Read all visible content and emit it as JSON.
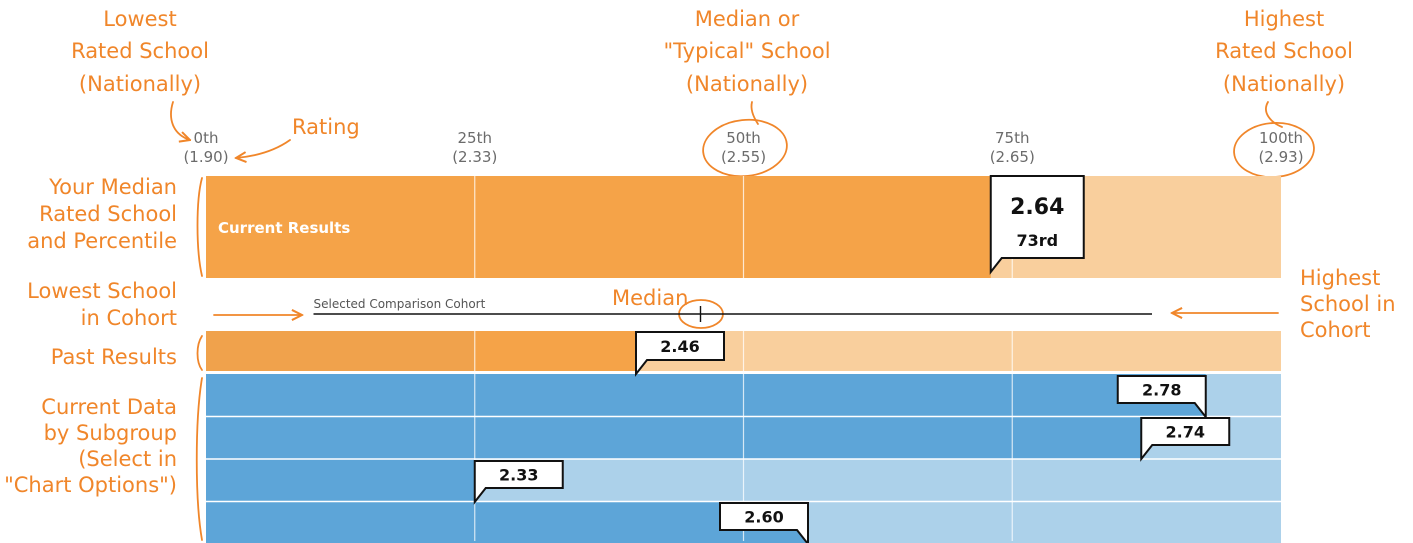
{
  "chart_data": {
    "type": "bar",
    "percentile_ticks": [
      {
        "pct": "0th",
        "rating": "(1.90)"
      },
      {
        "pct": "25th",
        "rating": "(2.33)"
      },
      {
        "pct": "50th",
        "rating": "(2.55)"
      },
      {
        "pct": "75th",
        "rating": "(2.65)"
      },
      {
        "pct": "100th",
        "rating": "(2.93)"
      }
    ],
    "xlim_percentile": [
      0,
      100
    ],
    "current_results": {
      "label": "Current Results",
      "rating": "2.64",
      "percentile_label": "73rd",
      "percentile": 73
    },
    "cohort": {
      "label": "Selected Comparison Cohort",
      "low_percentile": 10,
      "median_percentile": 46,
      "high_percentile": 88
    },
    "past_results": {
      "rating": "2.46",
      "percentile": 40
    },
    "subgroups": [
      {
        "rating": "2.78",
        "percentile": 93
      },
      {
        "rating": "2.74",
        "percentile": 87
      },
      {
        "rating": "2.33",
        "percentile": 25
      },
      {
        "rating": "2.60",
        "percentile": 56
      }
    ],
    "colors": {
      "orange": "#f5a348",
      "orange_light": "#f9cf9d",
      "orange_past": "#f0a24c",
      "blue": "#5da5d8",
      "blue_light": "#acd1ea",
      "annotation": "#f0862a"
    }
  },
  "annotations": {
    "lowest_rated": [
      "Lowest",
      "Rated School",
      "(Nationally)"
    ],
    "median_typical": [
      "Median or",
      "\"Typical\" School",
      "(Nationally)"
    ],
    "highest_rated": [
      "Highest",
      "Rated School",
      "(Nationally)"
    ],
    "rating": "Rating",
    "your_median": [
      "Your Median",
      "Rated School",
      "and Percentile"
    ],
    "lowest_cohort": [
      "Lowest School",
      "in Cohort"
    ],
    "median": "Median",
    "highest_cohort": [
      "Highest",
      "School in",
      "Cohort"
    ],
    "past_results": "Past Results",
    "current_subgroup": [
      "Current Data",
      "by Subgroup",
      "(Select in",
      "\"Chart Options\")"
    ]
  }
}
